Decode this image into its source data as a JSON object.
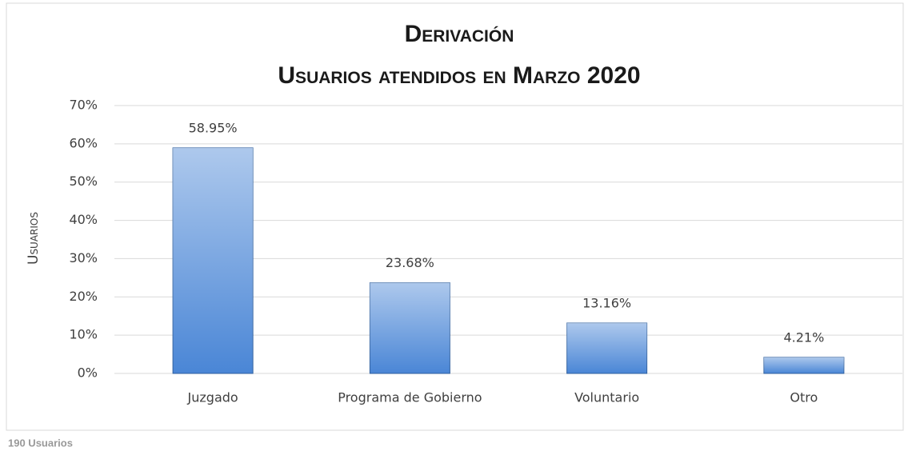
{
  "chart_data": {
    "type": "bar",
    "title": "Derivación",
    "subtitle": "Usuarios atendidos en Marzo 2020",
    "y_label": "Usuarios",
    "footnote": "190 Usuarios",
    "categories": [
      "Juzgado",
      "Programa de Gobierno",
      "Voluntario",
      "Otro"
    ],
    "values": [
      58.95,
      23.68,
      13.16,
      4.21
    ],
    "value_labels": [
      "58.95%",
      "23.68%",
      "13.16%",
      "4.21%"
    ],
    "color": "#4a86d6",
    "ylim": [
      0,
      70
    ],
    "yticks": [
      {
        "value": 0,
        "label": "0%"
      },
      {
        "value": 10,
        "label": "10%"
      },
      {
        "value": 20,
        "label": "20%"
      },
      {
        "value": 30,
        "label": "30%"
      },
      {
        "value": 40,
        "label": "40%"
      },
      {
        "value": 50,
        "label": "50%"
      },
      {
        "value": 60,
        "label": "60%"
      },
      {
        "value": 70,
        "label": "70%"
      }
    ],
    "grid": true
  }
}
